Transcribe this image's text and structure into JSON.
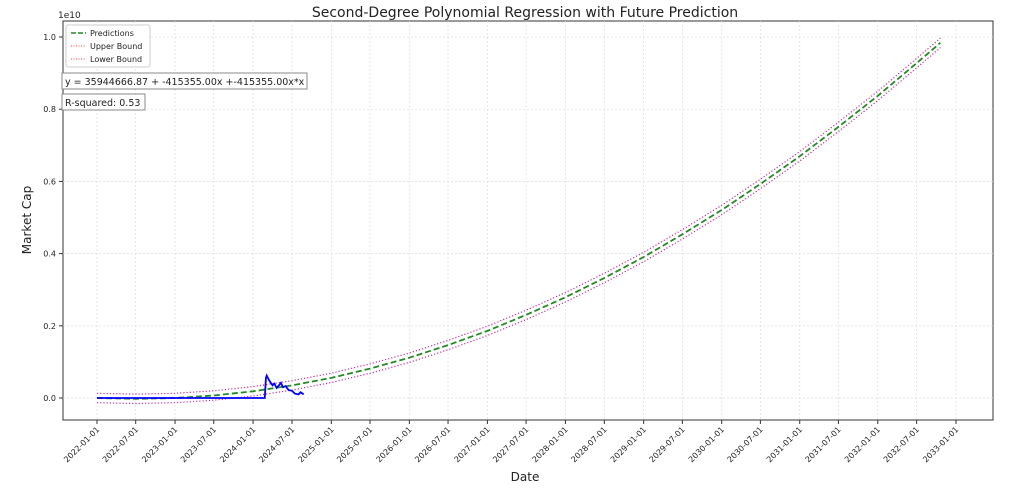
{
  "chart_data": {
    "type": "line",
    "title": "Second-Degree Polynomial Regression with Future Prediction",
    "xlabel": "Date",
    "ylabel": "Market Cap",
    "y_offset_label": "1e10",
    "ylim": [
      -0.06,
      1.05
    ],
    "xlim": [
      "2021-09-01",
      "2033-03-10"
    ],
    "grid": true,
    "legend_position": "top-left",
    "x_ticks": [
      "2022-01-01",
      "2022-07-01",
      "2023-01-01",
      "2023-07-01",
      "2024-01-01",
      "2024-07-01",
      "2025-01-01",
      "2025-07-01",
      "2026-01-01",
      "2026-07-01",
      "2027-01-01",
      "2027-07-01",
      "2028-01-01",
      "2028-07-01",
      "2029-01-01",
      "2029-07-01",
      "2030-01-01",
      "2030-07-01",
      "2031-01-01",
      "2031-07-01",
      "2032-01-01",
      "2032-07-01",
      "2033-01-01"
    ],
    "y_ticks": [
      "0.0",
      "0.2",
      "0.4",
      "0.6",
      "0.8",
      "1.0"
    ],
    "y_tick_values": [
      0,
      0.2,
      0.4,
      0.6,
      0.8,
      1.0
    ],
    "annotations": [
      "y = 35944666.87 + -415355.00x +-415355.00x*x",
      "R-squared: 0.53"
    ],
    "series": [
      {
        "name": "Predictions",
        "color": "#228b22",
        "style": "dashed",
        "x": [
          "2022-01-01",
          "2022-07-01",
          "2023-01-01",
          "2023-07-01",
          "2024-01-01",
          "2024-07-01",
          "2025-01-01",
          "2025-07-01",
          "2026-01-01",
          "2026-07-01",
          "2027-01-01",
          "2027-07-01",
          "2028-01-01",
          "2028-07-01",
          "2029-01-01",
          "2029-07-01",
          "2030-01-01",
          "2030-07-01",
          "2031-01-01",
          "2031-07-01",
          "2032-01-01",
          "2032-07-01",
          "2032-10-20"
        ],
        "y": [
          0,
          -0.0023,
          0,
          0.007,
          0.0186,
          0.0349,
          0.0558,
          0.0814,
          0.1116,
          0.1465,
          0.186,
          0.2302,
          0.279,
          0.3325,
          0.3906,
          0.4534,
          0.5208,
          0.5929,
          0.6696,
          0.751,
          0.837,
          0.9277,
          0.984
        ]
      },
      {
        "name": "Upper Bound",
        "color": "#c0309a",
        "style": "dotted",
        "offset": 0.013
      },
      {
        "name": "Lower Bound",
        "color": "#c0309a",
        "style": "dotted",
        "offset": -0.013
      },
      {
        "color": "#0000ff",
        "style": "solid",
        "x": [
          "2022-01-01",
          "2024-02-25",
          "2024-03-01",
          "2024-03-05",
          "2024-03-15",
          "2024-04-01",
          "2024-04-10",
          "2024-04-20",
          "2024-05-01",
          "2024-05-10",
          "2024-05-20",
          "2024-06-01",
          "2024-06-15",
          "2024-07-01",
          "2024-07-15",
          "2024-08-01",
          "2024-08-10",
          "2024-08-25"
        ],
        "y": [
          0,
          0,
          0.055,
          0.062,
          0.05,
          0.035,
          0.04,
          0.028,
          0.035,
          0.042,
          0.03,
          0.033,
          0.022,
          0.02,
          0.012,
          0.01,
          0.016,
          0.01
        ]
      }
    ]
  }
}
